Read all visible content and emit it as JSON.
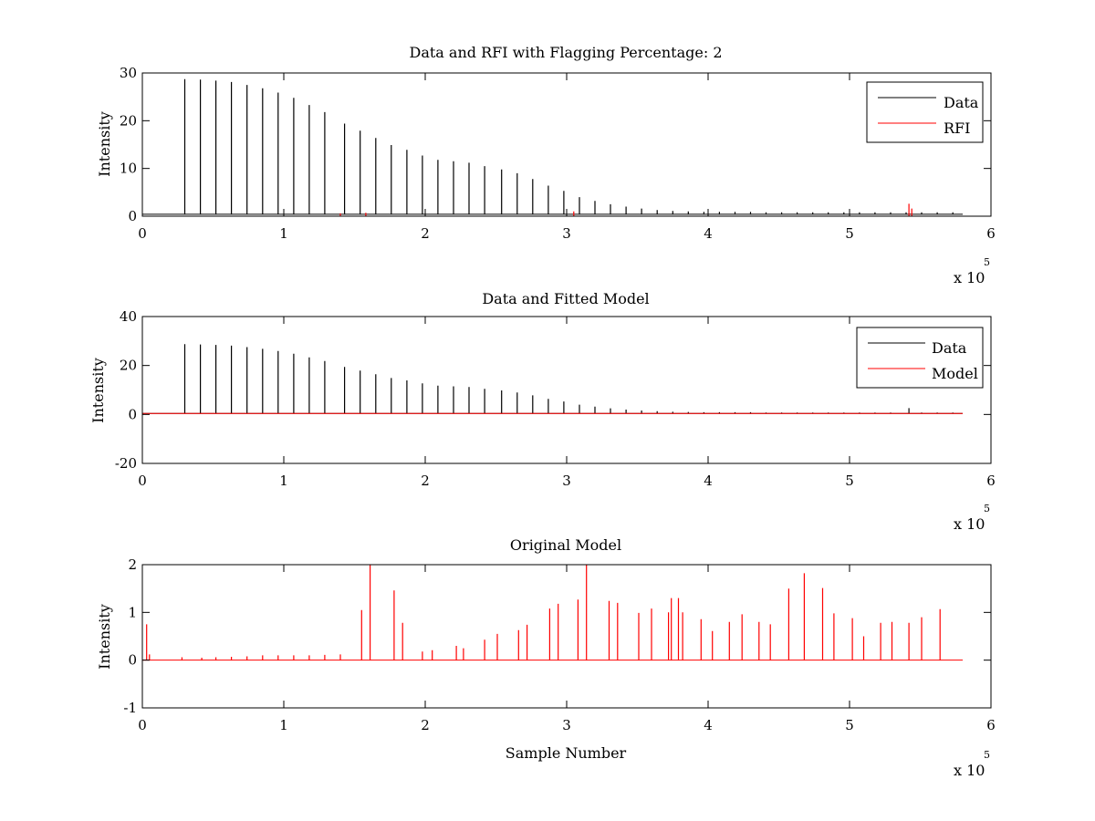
{
  "chart_data": [
    {
      "type": "line",
      "title": "Data and RFI with Flagging Percentage: 2",
      "xlabel": "",
      "ylabel": "Intensity",
      "xlim": [
        0,
        6
      ],
      "ylim": [
        0,
        30
      ],
      "xticks": [
        "0",
        "1",
        "2",
        "3",
        "4",
        "5",
        "6"
      ],
      "yticks": [
        "0",
        "10",
        "20",
        "30"
      ],
      "x_multiplier": "x 10",
      "x_exponent": "5",
      "legend_position": "top-right",
      "grid": false,
      "series": [
        {
          "name": "Data",
          "color": "#000000",
          "baseline": 0.4,
          "peaks_x": [
            0.3,
            0.41,
            0.52,
            0.63,
            0.74,
            0.85,
            0.96,
            1.07,
            1.18,
            1.29,
            1.43,
            1.54,
            1.65,
            1.76,
            1.87,
            1.98,
            2.09,
            2.2,
            2.31,
            2.42,
            2.54,
            2.65,
            2.76,
            2.87,
            2.98,
            3.09,
            3.2,
            3.31,
            3.42,
            3.53,
            3.64,
            3.75,
            3.86,
            3.97,
            4.08,
            4.19,
            4.3,
            4.41,
            4.52,
            4.63,
            4.74,
            4.85,
            4.96,
            5.07,
            5.18,
            5.29,
            5.4,
            5.51,
            5.62,
            5.73
          ],
          "peaks_y": [
            28.7,
            28.6,
            28.4,
            28.1,
            27.5,
            26.8,
            25.9,
            24.8,
            23.3,
            21.8,
            19.4,
            17.9,
            16.4,
            14.9,
            13.9,
            12.7,
            11.8,
            11.5,
            11.2,
            10.5,
            9.8,
            9.0,
            7.8,
            6.4,
            5.3,
            4.0,
            3.2,
            2.5,
            2.0,
            1.6,
            1.3,
            1.1,
            1.0,
            0.9,
            0.9,
            0.9,
            0.9,
            0.8,
            0.8,
            0.8,
            0.8,
            0.8,
            0.8,
            0.8,
            0.8,
            0.8,
            0.8,
            0.8,
            0.8,
            0.8
          ]
        },
        {
          "name": "RFI",
          "color": "#ff0000",
          "peaks_x": [
            1.4,
            1.58,
            3.05,
            5.42,
            5.44
          ],
          "peaks_y": [
            0.6,
            0.7,
            1.0,
            2.6,
            1.6
          ]
        }
      ]
    },
    {
      "type": "line",
      "title": "Data and Fitted Model",
      "xlabel": "",
      "ylabel": "Intensity",
      "xlim": [
        0,
        6
      ],
      "ylim": [
        -20,
        40
      ],
      "xticks": [
        "0",
        "1",
        "2",
        "3",
        "4",
        "5",
        "6"
      ],
      "yticks": [
        "-20",
        "0",
        "20",
        "40"
      ],
      "x_multiplier": "x 10",
      "x_exponent": "5",
      "legend_position": "top-right",
      "grid": false,
      "series": [
        {
          "name": "Data",
          "color": "#000000",
          "baseline": 0.4,
          "peaks_x": [
            0.3,
            0.41,
            0.52,
            0.63,
            0.74,
            0.85,
            0.96,
            1.07,
            1.18,
            1.29,
            1.43,
            1.54,
            1.65,
            1.76,
            1.87,
            1.98,
            2.09,
            2.2,
            2.31,
            2.42,
            2.54,
            2.65,
            2.76,
            2.87,
            2.98,
            3.09,
            3.2,
            3.31,
            3.42,
            3.53,
            3.64,
            3.75,
            3.86,
            3.97,
            4.08,
            4.19,
            4.3,
            4.41,
            4.52,
            4.63,
            4.74,
            4.85,
            4.96,
            5.07,
            5.18,
            5.29,
            5.42,
            5.51,
            5.62,
            5.73
          ],
          "peaks_y": [
            28.7,
            28.6,
            28.4,
            28.1,
            27.5,
            26.8,
            25.9,
            24.8,
            23.3,
            21.8,
            19.4,
            17.9,
            16.4,
            14.9,
            13.9,
            12.7,
            11.8,
            11.5,
            11.2,
            10.5,
            9.8,
            9.0,
            7.8,
            6.4,
            5.3,
            4.0,
            3.2,
            2.5,
            2.0,
            1.6,
            1.3,
            1.1,
            1.0,
            0.9,
            0.9,
            0.9,
            0.9,
            0.8,
            0.8,
            0.8,
            0.8,
            0.8,
            0.8,
            0.8,
            0.8,
            0.8,
            2.6,
            0.8,
            0.8,
            0.8
          ]
        },
        {
          "name": "Model",
          "color": "#ff0000",
          "baseline": 0.4
        }
      ]
    },
    {
      "type": "line",
      "title": "Original Model",
      "xlabel": "Sample Number",
      "ylabel": "Intensity",
      "xlim": [
        0,
        6
      ],
      "ylim": [
        -1,
        2
      ],
      "xticks": [
        "0",
        "1",
        "2",
        "3",
        "4",
        "5",
        "6"
      ],
      "yticks": [
        "-1",
        "0",
        "1",
        "2"
      ],
      "x_multiplier": "x 10",
      "x_exponent": "5",
      "grid": false,
      "series": [
        {
          "color": "#ff0000",
          "baseline": 0.0,
          "peaks_x": [
            0.03,
            0.05,
            0.28,
            0.42,
            0.52,
            0.63,
            0.74,
            0.85,
            0.96,
            1.07,
            1.18,
            1.29,
            1.4,
            1.55,
            1.61,
            1.78,
            1.84,
            1.98,
            2.05,
            2.22,
            2.27,
            2.42,
            2.51,
            2.66,
            2.72,
            2.88,
            2.94,
            3.08,
            3.14,
            3.3,
            3.36,
            3.51,
            3.6,
            3.72,
            3.74,
            3.79,
            3.82,
            3.95,
            4.03,
            4.15,
            4.24,
            4.36,
            4.44,
            4.57,
            4.68,
            4.81,
            4.89,
            5.02,
            5.1,
            5.22,
            5.3,
            5.42,
            5.51,
            5.64
          ],
          "peaks_y": [
            0.75,
            0.12,
            0.06,
            0.05,
            0.06,
            0.07,
            0.08,
            0.1,
            0.1,
            0.1,
            0.1,
            0.11,
            0.12,
            1.05,
            2.0,
            1.46,
            0.78,
            0.18,
            0.21,
            0.3,
            0.25,
            0.43,
            0.55,
            0.63,
            0.74,
            1.08,
            1.18,
            1.27,
            2.0,
            1.24,
            1.2,
            0.99,
            1.08,
            1.0,
            1.3,
            1.3,
            1.0,
            0.86,
            0.61,
            0.8,
            0.96,
            0.8,
            0.75,
            1.5,
            1.82,
            1.51,
            0.98,
            0.88,
            0.5,
            0.78,
            0.8,
            0.78,
            0.9,
            1.07
          ]
        }
      ]
    }
  ]
}
